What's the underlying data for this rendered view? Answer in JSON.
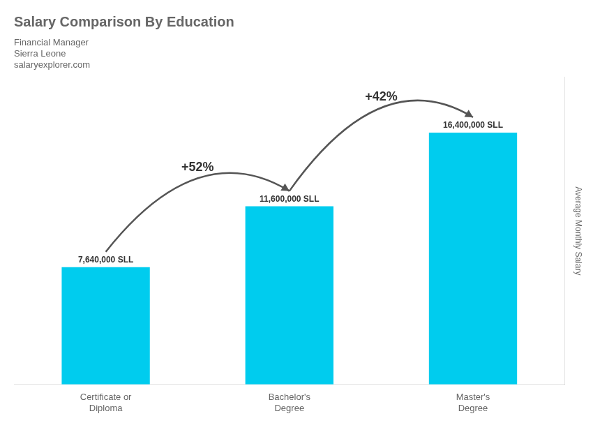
{
  "chart_data": {
    "type": "bar",
    "title": "Salary Comparison By Education",
    "subtitle": "Financial Manager",
    "annotations": [
      "Sierra Leone",
      "salaryexplorer.com"
    ],
    "ylabel": "Average Monthly Salary",
    "categories": [
      "Certificate or\nDiploma",
      "Bachelor's\nDegree",
      "Master's\nDegree"
    ],
    "values": [
      7640000,
      11600000,
      16400000
    ],
    "value_labels": [
      "7,640,000 SLL",
      "11,600,000 SLL",
      "16,400,000 SLL"
    ],
    "change_labels": [
      "+52%",
      "+42%"
    ],
    "color": "#00ccee",
    "ylim": [
      0,
      20000000
    ],
    "grid": false,
    "data_labels": true,
    "tick_labels": "x"
  }
}
